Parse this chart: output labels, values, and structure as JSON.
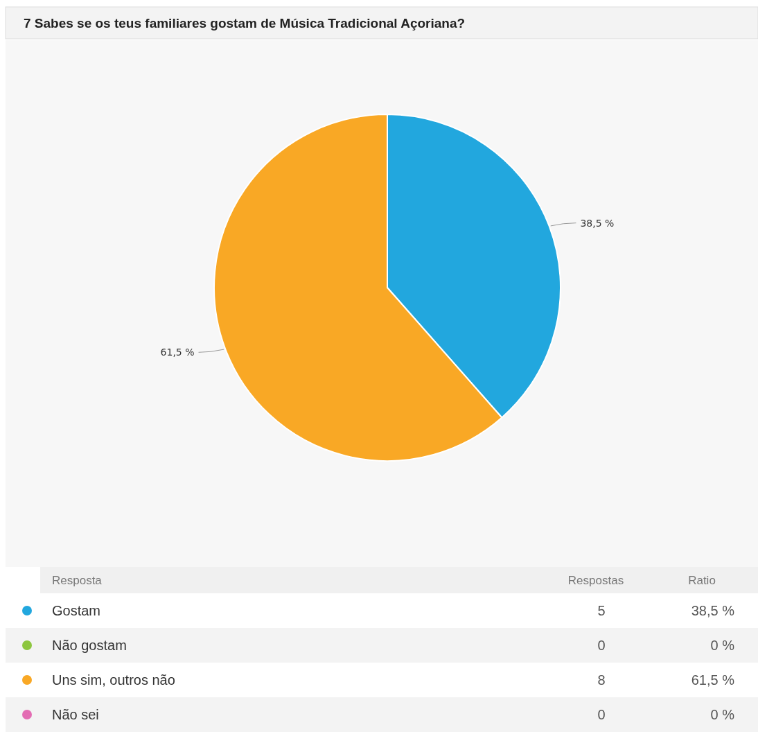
{
  "chart_data": {
    "type": "pie",
    "title": "7 Sabes se os teus familiares gostam de Música Tradicional Açoriana?",
    "categories": [
      "Gostam",
      "Não gostam",
      "Uns sim, outros não",
      "Não sei"
    ],
    "values": [
      38.5,
      0,
      61.5,
      0
    ],
    "value_labels": [
      "38,5 %",
      "0 %",
      "61,5 %",
      "0 %"
    ],
    "colors": [
      "#22a7de",
      "#8dc63f",
      "#f9a825",
      "#e36cb3"
    ],
    "annotations": [
      "Resposta",
      "Respostas",
      "Ratio",
      "5",
      "0",
      "8",
      "0"
    ],
    "data_labels": true,
    "legend": "bottom"
  }
}
